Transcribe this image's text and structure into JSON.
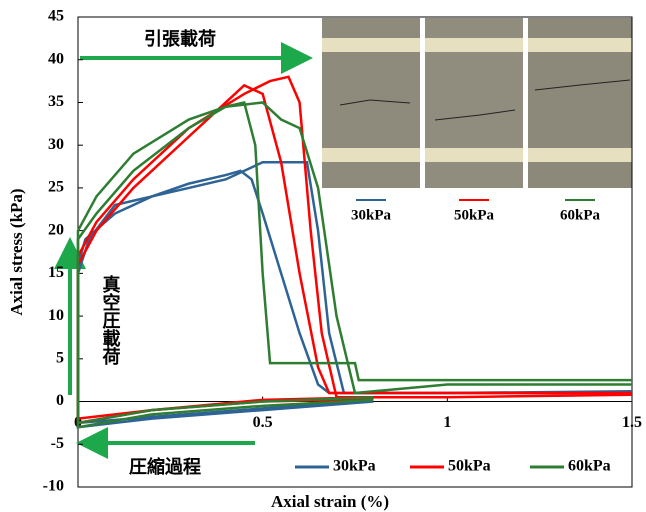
{
  "chart_data": {
    "type": "line",
    "xlabel": "Axial strain (%)",
    "ylabel": "Axial stress (kPa)",
    "xlim": [
      0,
      1.5
    ],
    "ylim": [
      -10,
      45
    ],
    "xticks": [
      0,
      0.5,
      1,
      1.5
    ],
    "yticks": [
      -10,
      -5,
      0,
      5,
      10,
      15,
      20,
      25,
      30,
      35,
      40,
      45
    ],
    "annotations": [
      "引張載荷",
      "真空圧載荷",
      "圧縮過程"
    ],
    "inset_labels": [
      "30kPa",
      "50kPa",
      "60kPa"
    ],
    "series": [
      {
        "name": "30kPa",
        "color": "#2e6395",
        "curves": [
          {
            "x": [
              0.8,
              0.5,
              0.2,
              0,
              0,
              0.02,
              0.1,
              0.2,
              0.3,
              0.4,
              0.44,
              0.47,
              0.5,
              0.55,
              0.6,
              0.65,
              0.68,
              1.0,
              1.5
            ],
            "y": [
              0,
              -1,
              -2,
              -3,
              16,
              19,
              22,
              24,
              25.5,
              26.5,
              27,
              26,
              22,
              15,
              8,
              2,
              1,
              1,
              1.2
            ]
          },
          {
            "x": [
              0.8,
              0.5,
              0.2,
              0,
              0,
              0.03,
              0.1,
              0.2,
              0.3,
              0.4,
              0.5,
              0.62,
              0.65,
              0.68,
              0.72,
              1.0,
              1.5
            ],
            "y": [
              0.2,
              -0.8,
              -1.8,
              -2.5,
              15,
              19,
              23,
              24,
              25,
              26,
              28,
              28,
              20,
              8,
              1,
              1,
              1
            ]
          }
        ]
      },
      {
        "name": "50kPa",
        "color": "#ff0000",
        "curves": [
          {
            "x": [
              0.8,
              0.5,
              0.2,
              0,
              0,
              0.05,
              0.15,
              0.3,
              0.45,
              0.52,
              0.57,
              0.6,
              0.63,
              0.66,
              0.7,
              1.0,
              1.5
            ],
            "y": [
              0.3,
              0,
              -1,
              -2,
              17,
              21,
              26,
              32,
              36,
              37.5,
              38,
              35,
              20,
              8,
              0.5,
              0.5,
              0.8
            ]
          },
          {
            "x": [
              0.8,
              0.5,
              0.2,
              0,
              0,
              0.05,
              0.15,
              0.3,
              0.4,
              0.45,
              0.5,
              0.55,
              0.6,
              0.65,
              0.68,
              1.0,
              1.5
            ],
            "y": [
              0.5,
              0.2,
              -1,
              -2.5,
              16,
              20,
              25,
              31,
              35,
              37,
              36,
              28,
              15,
              4,
              1,
              1,
              1
            ]
          }
        ]
      },
      {
        "name": "60kPa",
        "color": "#2e7d32",
        "curves": [
          {
            "x": [
              0.8,
              0.5,
              0.2,
              0,
              0,
              0.05,
              0.15,
              0.3,
              0.4,
              0.45,
              0.48,
              0.5,
              0.52,
              0.75,
              0.76,
              1.5
            ],
            "y": [
              0.5,
              0,
              -1,
              -2.5,
              19,
              22,
              27,
              32,
              34.5,
              35,
              30,
              15,
              4.5,
              4.5,
              2.5,
              2.5
            ]
          },
          {
            "x": [
              0.8,
              0.5,
              0.2,
              0,
              0,
              0.05,
              0.15,
              0.3,
              0.4,
              0.5,
              0.55,
              0.6,
              0.65,
              0.7,
              0.75,
              1.0,
              1.5
            ],
            "y": [
              0.2,
              -0.5,
              -1.5,
              -3,
              20,
              24,
              29,
              33,
              34.5,
              35,
              33,
              32,
              25,
              10,
              1,
              2,
              2
            ]
          }
        ]
      }
    ]
  }
}
